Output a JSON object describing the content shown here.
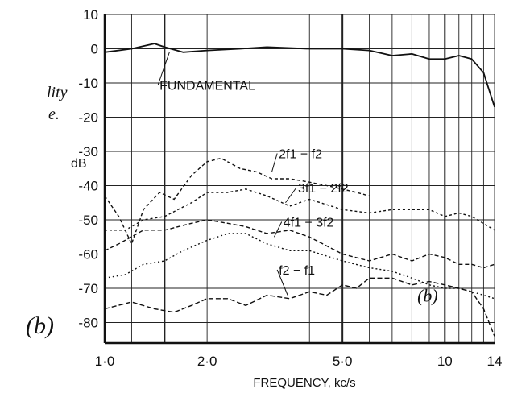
{
  "margin_text": [
    "lity",
    "e."
  ],
  "panel_label": "(b)",
  "chart_data": {
    "type": "line",
    "title": "",
    "xlabel": "FREQUENCY, kc/s",
    "ylabel": "dB",
    "x_scale": "log",
    "xlim": [
      1.0,
      14
    ],
    "ylim": [
      -86,
      10
    ],
    "x_ticks": [
      1.0,
      2.0,
      5.0,
      10,
      14
    ],
    "x_tick_labels": [
      "1·0",
      "2·0",
      "5·0",
      "10",
      "14"
    ],
    "y_ticks": [
      10,
      0,
      -10,
      -20,
      -30,
      -40,
      -50,
      -60,
      -70,
      -80
    ],
    "y_tick_labels": [
      "10",
      "0",
      "-10",
      "-20",
      "-30",
      "-40",
      "-50",
      "-60",
      "-70",
      "-80"
    ],
    "grid": true,
    "inset_label": "(b)",
    "series": [
      {
        "name": "FUNDAMENTAL",
        "label": "FUNDAMENTAL",
        "x": [
          1.0,
          1.2,
          1.4,
          1.5,
          1.7,
          2.0,
          2.5,
          3.0,
          4.0,
          5.0,
          6.0,
          7.0,
          8.0,
          9.0,
          10.0,
          11.0,
          12.0,
          13.0,
          14.0
        ],
        "values": [
          -1,
          0,
          1.5,
          0.5,
          -1,
          -0.5,
          0,
          0.5,
          0,
          0,
          -0.5,
          -2,
          -1.5,
          -3,
          -3,
          -2,
          -3,
          -7,
          -17
        ]
      },
      {
        "name": "2f1 − f2",
        "label": "2f1 − f2",
        "x": [
          1.0,
          1.1,
          1.2,
          1.3,
          1.45,
          1.6,
          1.8,
          2.0,
          2.2,
          2.5,
          2.8,
          3.1,
          3.5,
          4.0,
          4.5,
          5.0,
          5.5,
          6.0
        ],
        "values": [
          -43,
          -49,
          -57,
          -47,
          -42,
          -44,
          -37,
          -33,
          -32,
          -35,
          -36,
          -38,
          -38,
          -39,
          -40,
          -41,
          -42,
          -43
        ]
      },
      {
        "name": "3f1 − 2f2",
        "label": "3f1 − 2f2",
        "x": [
          1.0,
          1.15,
          1.3,
          1.5,
          1.8,
          2.0,
          2.3,
          2.6,
          3.0,
          3.5,
          4.0,
          5.0,
          6.0,
          7.0,
          8.0,
          9.0,
          10.0,
          11.0,
          12.0,
          14.0
        ],
        "values": [
          -53,
          -53,
          -50,
          -49,
          -45,
          -42,
          -42,
          -41,
          -43,
          -46,
          -44,
          -47,
          -48,
          -47,
          -47,
          -47,
          -49,
          -48,
          -49,
          -53
        ]
      },
      {
        "name": "4f1 − 3f2",
        "label": "4f1 − 3f2",
        "x": [
          1.0,
          1.1,
          1.3,
          1.5,
          1.8,
          2.0,
          2.3,
          2.6,
          3.0,
          3.5,
          4.0,
          5.0,
          6.0,
          7.0,
          8.0,
          9.0,
          10.0,
          11.0,
          12.0,
          13.0,
          14.0
        ],
        "values": [
          -59,
          -57,
          -53,
          -53,
          -51,
          -50,
          -51,
          -52,
          -54,
          -53,
          -55,
          -60,
          -62,
          -60,
          -62,
          -60,
          -61,
          -63,
          -63,
          -64,
          -63
        ]
      },
      {
        "name": "5th curve",
        "label": "",
        "x": [
          1.0,
          1.15,
          1.3,
          1.5,
          1.7,
          2.0,
          2.3,
          2.6,
          3.0,
          3.5,
          4.0,
          5.0,
          6.0,
          7.0,
          8.0,
          9.0,
          10.0,
          11.0,
          12.0,
          13.0,
          14.0
        ],
        "values": [
          -67,
          -66,
          -63,
          -62,
          -59,
          -56,
          -54,
          -54,
          -57,
          -59,
          -59,
          -62,
          -64,
          -65,
          -67,
          -69,
          -70,
          -70,
          -71,
          -72,
          -73
        ]
      },
      {
        "name": "f2 − f1",
        "label": "f2 − f1",
        "x": [
          1.0,
          1.2,
          1.4,
          1.6,
          1.8,
          2.0,
          2.3,
          2.6,
          3.0,
          3.5,
          4.0,
          4.5,
          5.0,
          5.5,
          6.0,
          7.0,
          8.0,
          9.0,
          10.0,
          11.0,
          12.0,
          13.0,
          14.0
        ],
        "values": [
          -76,
          -74,
          -76,
          -77,
          -75,
          -73,
          -73,
          -75,
          -72,
          -73,
          -71,
          -72,
          -69,
          -70,
          -67,
          -67,
          -69,
          -68,
          -69,
          -70,
          -71,
          -76,
          -84
        ]
      }
    ]
  }
}
